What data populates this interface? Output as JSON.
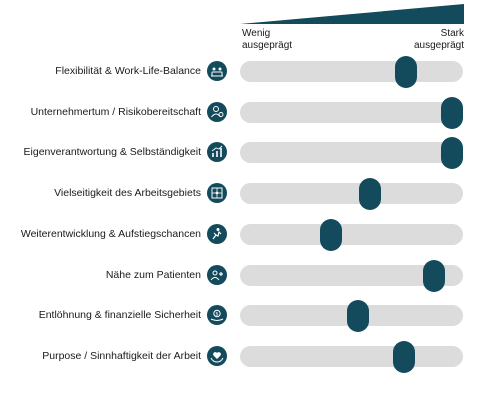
{
  "header": {
    "left_line1": "Wenig",
    "left_line2": "ausgeprägt",
    "right_line1": "Stark",
    "right_line2": "ausgeprägt"
  },
  "colors": {
    "accent": "#134a5c",
    "track": "#dcdcdc"
  },
  "rows": [
    {
      "label": "Flexibilität & Work-Life-Balance",
      "icon": "team-laptop-icon",
      "value": 0.77
    },
    {
      "label": "Unternehmertum / Risikobereitschaft",
      "icon": "person-dollar-icon",
      "value": 1.0
    },
    {
      "label": "Eigenverantwortung & Selbständigkeit",
      "icon": "growth-chart-icon",
      "value": 1.0
    },
    {
      "label": "Vielseitigkeit des Arbeitsgebiets",
      "icon": "puzzle-icon",
      "value": 0.59
    },
    {
      "label": "Weiterentwicklung & Aufstiegschancen",
      "icon": "climbing-person-icon",
      "value": 0.4
    },
    {
      "label": "Nähe zum Patienten",
      "icon": "patient-care-icon",
      "value": 0.91
    },
    {
      "label": "Entlöhnung & finanzielle Sicherheit",
      "icon": "money-hand-icon",
      "value": 0.53
    },
    {
      "label": "Purpose / Sinnhaftigkeit der Arbeit",
      "icon": "heart-hands-icon",
      "value": 0.76
    }
  ]
}
